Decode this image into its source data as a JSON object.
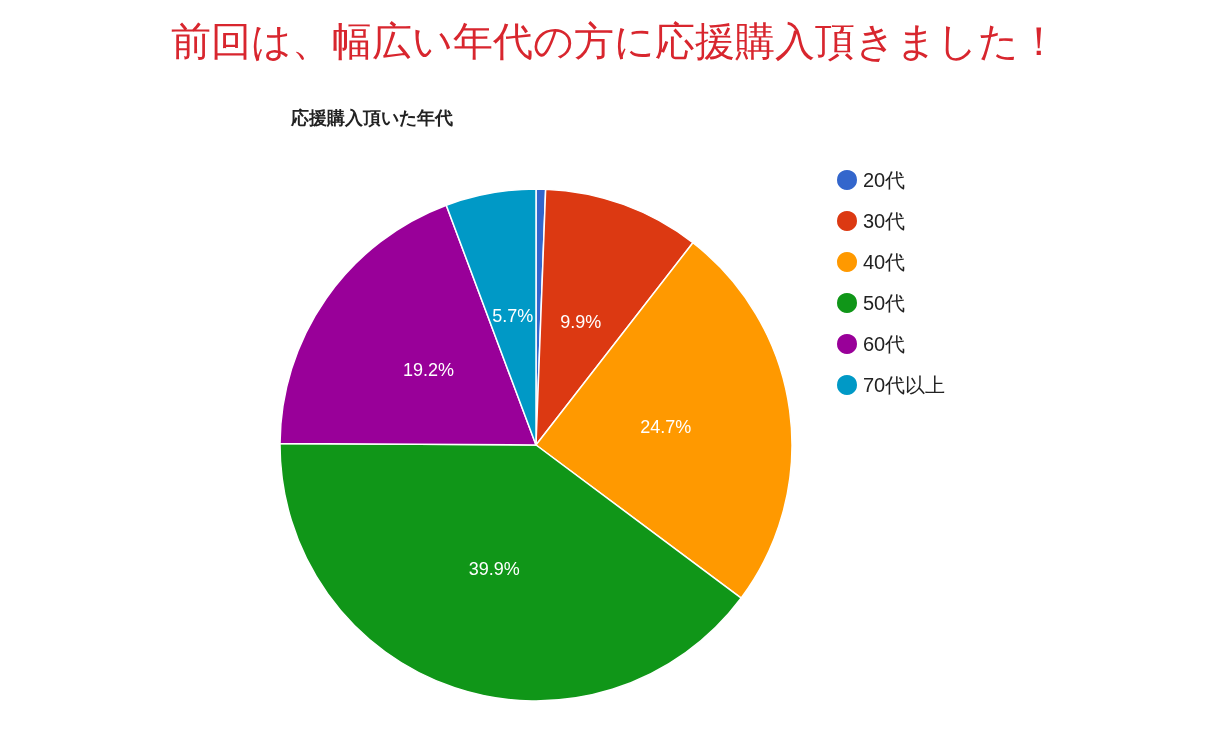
{
  "chart_data": {
    "type": "pie",
    "title": "前回は、幅広い年代の方に応援購入頂きました！",
    "subtitle": "応援購入頂いた年代",
    "categories": [
      "20代",
      "30代",
      "40代",
      "50代",
      "60代",
      "70代以上"
    ],
    "values": [
      0.6,
      9.9,
      24.7,
      39.9,
      19.2,
      5.7
    ],
    "value_labels": [
      null,
      "9.9%",
      "24.7%",
      "39.9%",
      "19.2%",
      "5.7%"
    ],
    "colors": [
      "#3366cc",
      "#dc3912",
      "#ff9900",
      "#109618",
      "#990099",
      "#0099c6"
    ],
    "legend": "right"
  }
}
